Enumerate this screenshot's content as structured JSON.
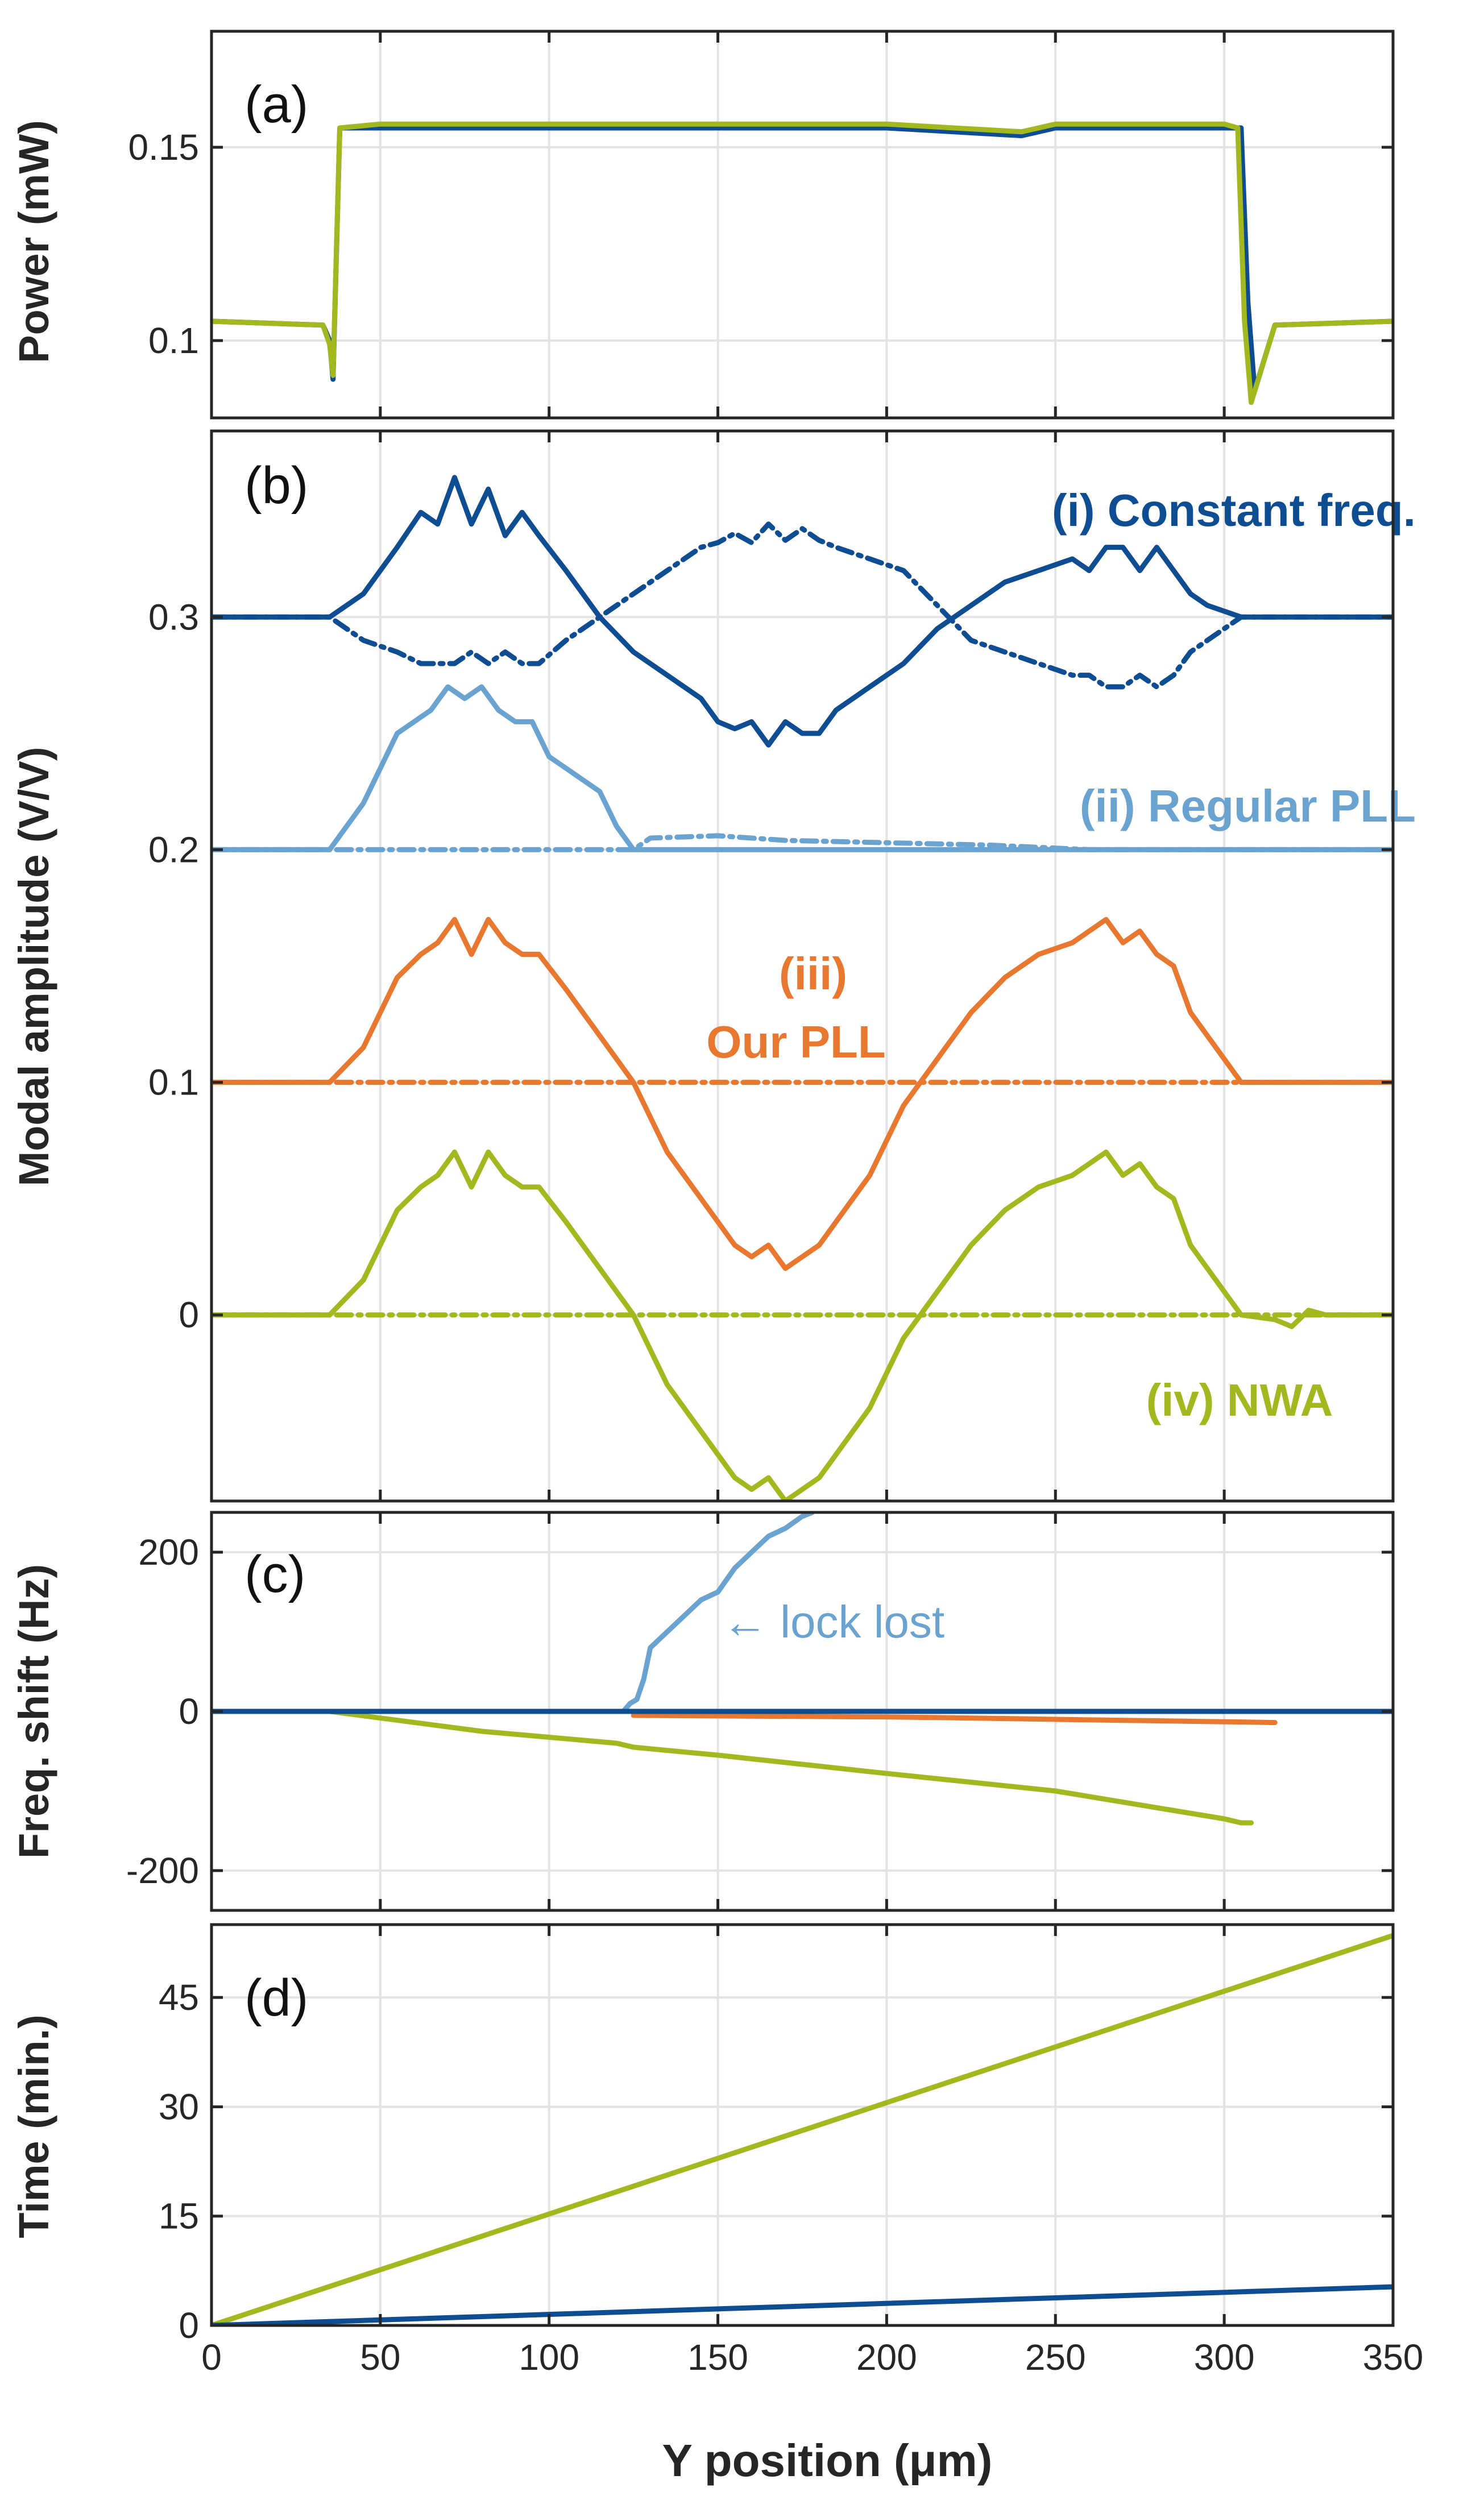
{
  "chart_data": [
    {
      "panel": "(a)",
      "type": "line",
      "ylabel": "Power (mW)",
      "xlim": [
        0,
        350
      ],
      "ylim": [
        0.08,
        0.18
      ],
      "yticks": [
        0.1,
        0.15
      ],
      "ytick_labels": [
        "0.1",
        "0.15"
      ],
      "grid": true,
      "series": [
        {
          "name": "Constant freq.",
          "color": "#0e4d92",
          "style": "solid",
          "x": [
            0,
            33,
            35,
            36,
            38,
            50,
            100,
            150,
            200,
            240,
            250,
            300,
            305,
            307,
            309,
            315,
            350
          ],
          "y": [
            0.105,
            0.104,
            0.1,
            0.09,
            0.155,
            0.155,
            0.155,
            0.155,
            0.155,
            0.153,
            0.155,
            0.155,
            0.155,
            0.11,
            0.087,
            0.104,
            0.105
          ]
        },
        {
          "name": "NWA",
          "color": "#a2b81e",
          "style": "solid",
          "x": [
            0,
            33,
            35,
            36,
            38,
            50,
            100,
            150,
            200,
            240,
            250,
            300,
            304,
            306,
            308,
            315,
            350
          ],
          "y": [
            0.105,
            0.104,
            0.099,
            0.091,
            0.155,
            0.156,
            0.156,
            0.156,
            0.156,
            0.154,
            0.156,
            0.156,
            0.155,
            0.105,
            0.084,
            0.104,
            0.105
          ]
        }
      ]
    },
    {
      "panel": "(b)",
      "type": "line",
      "ylabel": "Modal amplitude (V/V)",
      "xlim": [
        0,
        350
      ],
      "ylim": [
        -0.08,
        0.38
      ],
      "yticks": [
        0,
        0.1,
        0.2,
        0.3
      ],
      "ytick_labels": [
        "0",
        "0.1",
        "0.2",
        "0.3"
      ],
      "grid": true,
      "annotations": [
        {
          "text": "(i) Constant freq.",
          "color": "#0e4d92"
        },
        {
          "text": "(ii) Regular PLL",
          "color": "#6aa3d0"
        },
        {
          "text": "(iii)",
          "color": "#e87830"
        },
        {
          "text": "Our PLL",
          "color": "#e87830"
        },
        {
          "text": "(iv) NWA",
          "color": "#a2b81e"
        }
      ],
      "series": [
        {
          "name": "(i) solid",
          "color": "#0e4d92",
          "style": "solid",
          "x": [
            0,
            35,
            45,
            55,
            62,
            67,
            72,
            77,
            82,
            87,
            92,
            97,
            105,
            115,
            125,
            135,
            145,
            150,
            155,
            160,
            165,
            170,
            175,
            180,
            185,
            195,
            205,
            215,
            225,
            235,
            245,
            255,
            260,
            265,
            270,
            275,
            280,
            285,
            290,
            295,
            305,
            350
          ],
          "y": [
            0.3,
            0.3,
            0.31,
            0.33,
            0.345,
            0.34,
            0.36,
            0.34,
            0.355,
            0.335,
            0.345,
            0.335,
            0.32,
            0.3,
            0.285,
            0.275,
            0.265,
            0.255,
            0.252,
            0.255,
            0.245,
            0.255,
            0.25,
            0.25,
            0.26,
            0.27,
            0.28,
            0.295,
            0.305,
            0.315,
            0.32,
            0.325,
            0.32,
            0.33,
            0.33,
            0.32,
            0.33,
            0.32,
            0.31,
            0.305,
            0.3,
            0.3
          ]
        },
        {
          "name": "(i) dashed",
          "color": "#0e4d92",
          "style": "dashed",
          "x": [
            0,
            35,
            45,
            55,
            62,
            67,
            72,
            77,
            82,
            87,
            92,
            97,
            105,
            115,
            125,
            135,
            145,
            150,
            155,
            160,
            165,
            170,
            175,
            180,
            185,
            195,
            205,
            215,
            225,
            235,
            245,
            255,
            260,
            265,
            270,
            275,
            280,
            285,
            290,
            295,
            305,
            350
          ],
          "y": [
            0.3,
            0.3,
            0.29,
            0.285,
            0.28,
            0.28,
            0.28,
            0.285,
            0.28,
            0.285,
            0.28,
            0.28,
            0.29,
            0.3,
            0.31,
            0.32,
            0.33,
            0.332,
            0.336,
            0.332,
            0.34,
            0.333,
            0.338,
            0.333,
            0.33,
            0.325,
            0.32,
            0.305,
            0.29,
            0.285,
            0.28,
            0.275,
            0.275,
            0.27,
            0.27,
            0.275,
            0.27,
            0.275,
            0.285,
            0.29,
            0.3,
            0.3
          ]
        },
        {
          "name": "(ii) solid",
          "color": "#6aa3d0",
          "style": "solid",
          "x": [
            0,
            35,
            40,
            45,
            50,
            55,
            60,
            65,
            70,
            75,
            80,
            85,
            90,
            95,
            100,
            105,
            110,
            115,
            120,
            125,
            350
          ],
          "y": [
            0.2,
            0.2,
            0.21,
            0.22,
            0.235,
            0.25,
            0.255,
            0.26,
            0.27,
            0.265,
            0.27,
            0.26,
            0.255,
            0.255,
            0.24,
            0.235,
            0.23,
            0.225,
            0.21,
            0.2,
            0.2
          ]
        },
        {
          "name": "(ii) dashed",
          "color": "#6aa3d0",
          "style": "dashed",
          "x": [
            0,
            120,
            125,
            130,
            150,
            170,
            200,
            230,
            260,
            290,
            350
          ],
          "y": [
            0.2,
            0.2,
            0.2,
            0.205,
            0.206,
            0.204,
            0.203,
            0.202,
            0.2,
            0.2,
            0.2
          ]
        },
        {
          "name": "(iii) solid",
          "color": "#e87830",
          "style": "solid",
          "x": [
            0,
            35,
            45,
            55,
            62,
            67,
            72,
            77,
            82,
            87,
            92,
            97,
            105,
            115,
            125,
            135,
            145,
            150,
            155,
            160,
            165,
            170,
            175,
            180,
            185,
            195,
            205,
            215,
            225,
            235,
            245,
            255,
            260,
            265,
            270,
            275,
            280,
            285,
            290,
            295,
            305,
            350
          ],
          "y": [
            0.1,
            0.1,
            0.115,
            0.145,
            0.155,
            0.16,
            0.17,
            0.155,
            0.17,
            0.16,
            0.155,
            0.155,
            0.14,
            0.12,
            0.1,
            0.07,
            0.05,
            0.04,
            0.03,
            0.025,
            0.03,
            0.02,
            0.025,
            0.03,
            0.04,
            0.06,
            0.09,
            0.11,
            0.13,
            0.145,
            0.155,
            0.16,
            0.165,
            0.17,
            0.16,
            0.165,
            0.155,
            0.15,
            0.13,
            0.12,
            0.1,
            0.1
          ]
        },
        {
          "name": "(iii) dashed",
          "color": "#e87830",
          "style": "dashed",
          "x": [
            0,
            350
          ],
          "y": [
            0.1,
            0.1
          ]
        },
        {
          "name": "(iv) solid",
          "color": "#a2b81e",
          "style": "solid",
          "x": [
            0,
            35,
            45,
            55,
            62,
            67,
            72,
            77,
            82,
            87,
            92,
            97,
            105,
            115,
            125,
            135,
            145,
            150,
            155,
            160,
            165,
            170,
            175,
            180,
            185,
            195,
            205,
            215,
            225,
            235,
            245,
            255,
            260,
            265,
            270,
            275,
            280,
            285,
            290,
            295,
            305,
            315,
            320,
            325,
            330,
            350
          ],
          "y": [
            0,
            0,
            0.015,
            0.045,
            0.055,
            0.06,
            0.07,
            0.055,
            0.07,
            0.06,
            0.055,
            0.055,
            0.04,
            0.02,
            0,
            -0.03,
            -0.05,
            -0.06,
            -0.07,
            -0.075,
            -0.07,
            -0.08,
            -0.075,
            -0.07,
            -0.06,
            -0.04,
            -0.01,
            0.01,
            0.03,
            0.045,
            0.055,
            0.06,
            0.065,
            0.07,
            0.06,
            0.065,
            0.055,
            0.05,
            0.03,
            0.02,
            0,
            -0.002,
            -0.005,
            0.002,
            0,
            0
          ]
        },
        {
          "name": "(iv) dashed",
          "color": "#a2b81e",
          "style": "dashed",
          "x": [
            0,
            350
          ],
          "y": [
            0,
            0
          ]
        }
      ]
    },
    {
      "panel": "(c)",
      "type": "line",
      "ylabel": "Freq. shift (Hz)",
      "xlim": [
        0,
        350
      ],
      "ylim": [
        -250,
        250
      ],
      "yticks": [
        -200,
        0,
        200
      ],
      "ytick_labels": [
        "-200",
        "0",
        "200"
      ],
      "grid": true,
      "annotations": [
        {
          "text": "←  lock lost",
          "color": "#6aa3d0"
        }
      ],
      "series": [
        {
          "name": "Regular PLL",
          "color": "#6aa3d0",
          "style": "solid",
          "x": [
            0,
            122,
            124,
            126,
            128,
            130,
            135,
            140,
            145,
            150,
            155,
            160,
            165,
            170,
            175,
            178
          ],
          "y": [
            0,
            0,
            10,
            15,
            40,
            80,
            100,
            120,
            140,
            150,
            180,
            200,
            220,
            230,
            245,
            250
          ]
        },
        {
          "name": "Our PLL",
          "color": "#e87830",
          "style": "solid",
          "x": [
            125,
            200,
            220,
            250,
            300,
            315
          ],
          "y": [
            -5,
            -7,
            -8,
            -10,
            -13,
            -14
          ]
        },
        {
          "name": "NWA",
          "color": "#a2b81e",
          "style": "solid",
          "x": [
            35,
            80,
            120,
            125,
            150,
            200,
            250,
            300,
            305,
            308
          ],
          "y": [
            0,
            -25,
            -40,
            -45,
            -55,
            -78,
            -100,
            -135,
            -140,
            -140
          ]
        },
        {
          "name": "Constant freq.",
          "color": "#0e4d92",
          "style": "solid",
          "x": [
            0,
            350
          ],
          "y": [
            0,
            0
          ]
        }
      ]
    },
    {
      "panel": "(d)",
      "type": "line",
      "ylabel": "Time (min.)",
      "xlabel": "Y position (μm)",
      "xlim": [
        0,
        350
      ],
      "ylim": [
        0,
        55
      ],
      "yticks": [
        0,
        15,
        30,
        45
      ],
      "ytick_labels": [
        "0",
        "15",
        "30",
        "45"
      ],
      "xticks": [
        0,
        50,
        100,
        150,
        200,
        250,
        300,
        350
      ],
      "xtick_labels": [
        "0",
        "50",
        "100",
        "150",
        "200",
        "250",
        "300",
        "350"
      ],
      "grid": true,
      "series": [
        {
          "name": "NWA",
          "color": "#a2b81e",
          "style": "solid",
          "x": [
            0,
            350
          ],
          "y": [
            0,
            53.5
          ]
        },
        {
          "name": "Constant freq.",
          "color": "#0e4d92",
          "style": "solid",
          "x": [
            0,
            350
          ],
          "y": [
            0,
            5.3
          ]
        }
      ]
    }
  ]
}
